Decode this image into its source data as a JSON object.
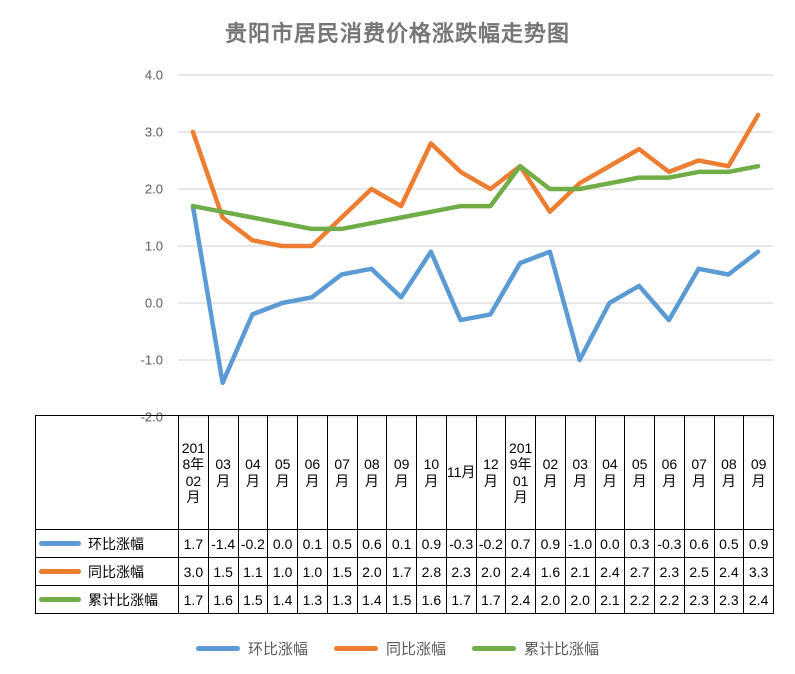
{
  "title": "贵阳市居民消费价格涨跌幅走势图",
  "chart_data": {
    "type": "line",
    "title": "贵阳市居民消费价格涨跌幅走势图",
    "categories": [
      "2018年02月",
      "03月",
      "04月",
      "05月",
      "06月",
      "07月",
      "08月",
      "09月",
      "10月",
      "11月",
      "12月",
      "2019年01月",
      "02月",
      "03月",
      "04月",
      "05月",
      "06月",
      "07月",
      "08月",
      "09月"
    ],
    "series": [
      {
        "name": "环比涨幅",
        "color": "#5B9BD5",
        "values": [
          1.7,
          -1.4,
          -0.2,
          0.0,
          0.1,
          0.5,
          0.6,
          0.1,
          0.9,
          -0.3,
          -0.2,
          0.7,
          0.9,
          -1.0,
          0.0,
          0.3,
          -0.3,
          0.6,
          0.5,
          0.9
        ]
      },
      {
        "name": "同比涨幅",
        "color": "#ED7D31",
        "values": [
          3.0,
          1.5,
          1.1,
          1.0,
          1.0,
          1.5,
          2.0,
          1.7,
          2.8,
          2.3,
          2.0,
          2.4,
          1.6,
          2.1,
          2.4,
          2.7,
          2.3,
          2.5,
          2.4,
          3.3
        ]
      },
      {
        "name": "累计比涨幅",
        "color": "#70AD47",
        "values": [
          1.7,
          1.6,
          1.5,
          1.4,
          1.3,
          1.3,
          1.4,
          1.5,
          1.6,
          1.7,
          1.7,
          2.4,
          2.0,
          2.0,
          2.1,
          2.2,
          2.2,
          2.3,
          2.3,
          2.4
        ]
      }
    ],
    "ylim": [
      -2.0,
      4.0
    ],
    "yticks": [
      4.0,
      3.0,
      2.0,
      1.0,
      0.0,
      -1.0,
      -2.0
    ],
    "ytick_labels": [
      "4.0",
      "3.0",
      "2.0",
      "1.0",
      "0.0",
      "-1.0",
      "-2.0"
    ],
    "grid": "horizontal",
    "has_data_table": true,
    "legend_position": "bottom",
    "value_format": "one_decimal",
    "colors": {
      "grid": "#D9D9D9",
      "title_text": "#767676",
      "axis_text": "#595959",
      "table_border": "#000000",
      "table_text": "#000000",
      "legend_text": "#595959"
    }
  }
}
